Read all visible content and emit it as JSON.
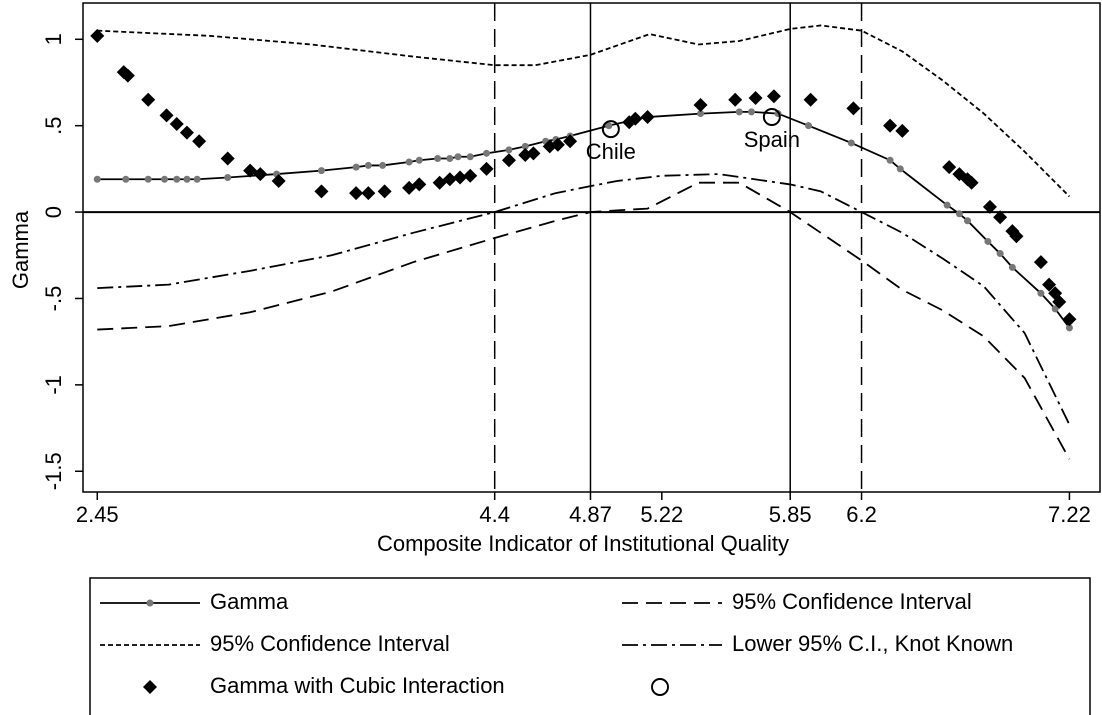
{
  "chart_data": {
    "type": "line",
    "x_label": "Composite Indicator of Institutional Quality",
    "y_label": "Gamma",
    "xlim": [
      2.38,
      7.37
    ],
    "ylim": [
      -1.62,
      1.21
    ],
    "xticks": [
      2.45,
      4.4,
      4.87,
      5.22,
      5.85,
      6.2,
      7.22
    ],
    "yticks": [
      1,
      {
        "value": 0.5,
        "label": ".5"
      },
      0,
      {
        "value": -0.5,
        "label": "-.5"
      },
      -1,
      -1.5
    ],
    "x_dashed_lines": [
      4.4,
      6.2
    ],
    "x_solid_lines": [
      4.87,
      5.85
    ],
    "y_solid_lines": [
      0
    ],
    "series": [
      {
        "name": "Gamma",
        "style": "solid-dots",
        "color": "#000000",
        "marker_color": "#777777",
        "x": [
          2.45,
          2.59,
          2.7,
          2.78,
          2.84,
          2.89,
          2.94,
          3.09,
          3.33,
          3.55,
          3.72,
          3.78,
          3.85,
          3.98,
          4.03,
          4.12,
          4.18,
          4.22,
          4.28,
          4.36,
          4.47,
          4.55,
          4.65,
          4.7,
          4.77,
          4.96,
          5.07,
          5.15,
          5.41,
          5.6,
          5.66,
          5.79,
          5.94,
          6.15,
          6.34,
          6.39,
          6.62,
          6.68,
          6.72,
          6.82,
          6.88,
          6.94,
          7.08,
          7.15,
          7.22
        ],
        "values": [
          0.19,
          0.19,
          0.19,
          0.19,
          0.19,
          0.19,
          0.19,
          0.2,
          0.22,
          0.24,
          0.26,
          0.27,
          0.27,
          0.29,
          0.3,
          0.31,
          0.31,
          0.32,
          0.32,
          0.34,
          0.36,
          0.38,
          0.41,
          0.42,
          0.44,
          0.5,
          0.53,
          0.55,
          0.57,
          0.58,
          0.58,
          0.57,
          0.5,
          0.4,
          0.3,
          0.25,
          0.04,
          -0.01,
          -0.05,
          -0.17,
          -0.24,
          -0.32,
          -0.47,
          -0.56,
          -0.67
        ]
      },
      {
        "name": "95% Confidence Interval",
        "style": "long-dash",
        "color": "#000000",
        "x": [
          2.45,
          2.8,
          3.2,
          3.6,
          4.0,
          4.4,
          4.7,
          4.87,
          5.0,
          5.15,
          5.4,
          5.6,
          5.85,
          6.0,
          6.2,
          6.4,
          6.6,
          6.8,
          7.0,
          7.22
        ],
        "values": [
          -0.68,
          -0.66,
          -0.58,
          -0.46,
          -0.29,
          -0.15,
          -0.05,
          0.0,
          0.01,
          0.02,
          0.17,
          0.17,
          0.0,
          -0.12,
          -0.28,
          -0.45,
          -0.57,
          -0.72,
          -0.96,
          -1.43
        ]
      },
      {
        "name": "95% Confidence Interval",
        "style": "short-dash",
        "color": "#000000",
        "x": [
          2.45,
          3.0,
          3.5,
          4.0,
          4.4,
          4.6,
          4.87,
          5.16,
          5.4,
          5.6,
          5.85,
          6.0,
          6.2,
          6.4,
          6.6,
          6.8,
          7.0,
          7.22
        ],
        "values": [
          1.05,
          1.02,
          0.97,
          0.9,
          0.85,
          0.85,
          0.91,
          1.03,
          0.97,
          0.99,
          1.06,
          1.08,
          1.05,
          0.93,
          0.76,
          0.57,
          0.35,
          0.09
        ]
      },
      {
        "name": "Lower 95% C.I., Knot Known",
        "style": "dash-dot",
        "color": "#000000",
        "x": [
          2.45,
          2.8,
          3.2,
          3.6,
          4.0,
          4.4,
          4.7,
          4.87,
          5.0,
          5.22,
          5.5,
          5.85,
          6.0,
          6.2,
          6.4,
          6.6,
          6.8,
          7.0,
          7.22
        ],
        "values": [
          -0.44,
          -0.42,
          -0.34,
          -0.25,
          -0.12,
          0.0,
          0.11,
          0.15,
          0.18,
          0.21,
          0.22,
          0.16,
          0.12,
          0.0,
          -0.12,
          -0.27,
          -0.43,
          -0.7,
          -1.23
        ]
      },
      {
        "name": "Gamma with Cubic Interaction",
        "style": "diamond",
        "color": "#000000",
        "x": [
          2.45,
          2.58,
          2.6,
          2.7,
          2.79,
          2.84,
          2.89,
          2.95,
          3.09,
          3.2,
          3.25,
          3.34,
          3.55,
          3.72,
          3.78,
          3.86,
          3.98,
          4.03,
          4.13,
          4.18,
          4.23,
          4.28,
          4.36,
          4.47,
          4.55,
          4.59,
          4.67,
          4.71,
          4.77,
          5.06,
          5.09,
          5.15,
          5.41,
          5.58,
          5.68,
          5.77,
          5.95,
          6.16,
          6.34,
          6.4,
          6.63,
          6.68,
          6.72,
          6.74,
          6.83,
          6.88,
          6.94,
          6.96,
          7.08,
          7.12,
          7.15,
          7.17,
          7.22
        ],
        "values": [
          1.02,
          0.81,
          0.79,
          0.65,
          0.56,
          0.51,
          0.46,
          0.41,
          0.31,
          0.24,
          0.22,
          0.18,
          0.12,
          0.11,
          0.11,
          0.12,
          0.14,
          0.16,
          0.17,
          0.19,
          0.2,
          0.21,
          0.25,
          0.3,
          0.33,
          0.34,
          0.38,
          0.39,
          0.41,
          0.52,
          0.54,
          0.55,
          0.62,
          0.65,
          0.66,
          0.67,
          0.65,
          0.6,
          0.5,
          0.47,
          0.26,
          0.22,
          0.19,
          0.17,
          0.03,
          -0.03,
          -0.11,
          -0.14,
          -0.29,
          -0.42,
          -0.47,
          -0.52,
          -0.62
        ]
      },
      {
        "style": "circle",
        "color": "#000000",
        "x": [
          4.97,
          5.76
        ],
        "values": [
          0.48,
          0.55
        ],
        "labels": [
          "Chile",
          "Spain"
        ]
      }
    ]
  }
}
